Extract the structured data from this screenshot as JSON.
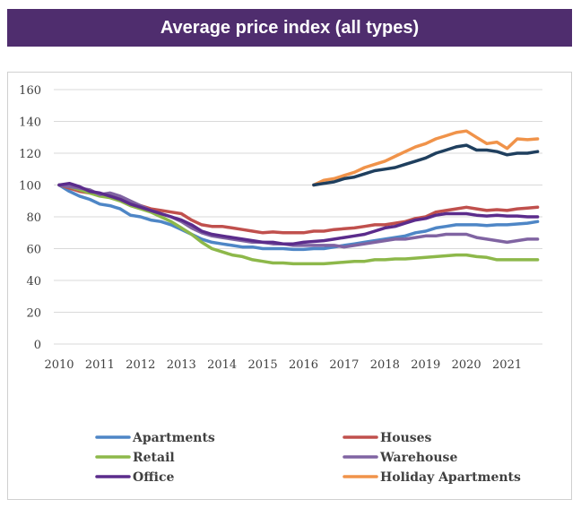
{
  "chart_data": {
    "type": "line",
    "title": "Average price index (all types)",
    "xlabel": "",
    "ylabel": "",
    "ylim": [
      0,
      160
    ],
    "xlim": [
      2010,
      2022
    ],
    "x_ticks": [
      "2010",
      "2011",
      "2012",
      "2013",
      "2014",
      "2015",
      "2016",
      "2017",
      "2018",
      "2019",
      "2020",
      "2021"
    ],
    "y_ticks": [
      "0",
      "20",
      "40",
      "60",
      "80",
      "100",
      "120",
      "140",
      "160"
    ],
    "grid": "horizontal",
    "legend_position": "bottom",
    "series": [
      {
        "name": "Apartments",
        "color": "#4e86c6",
        "x": [
          2010,
          2010.25,
          2010.5,
          2010.75,
          2011,
          2011.25,
          2011.5,
          2011.75,
          2012,
          2012.25,
          2012.5,
          2012.75,
          2013,
          2013.25,
          2013.5,
          2013.75,
          2014,
          2014.25,
          2014.5,
          2014.75,
          2015,
          2015.25,
          2015.5,
          2015.75,
          2016,
          2016.25,
          2016.5,
          2016.75,
          2017,
          2017.25,
          2017.5,
          2017.75,
          2018,
          2018.25,
          2018.5,
          2018.75,
          2019,
          2019.25,
          2019.5,
          2019.75,
          2020,
          2020.25,
          2020.5,
          2020.75,
          2021,
          2021.25,
          2021.5,
          2021.75
        ],
        "values": [
          100,
          96,
          93,
          91,
          88,
          87,
          85,
          81,
          80,
          78,
          77,
          75,
          72,
          69,
          66,
          64,
          63,
          62,
          61,
          61,
          60,
          60,
          60,
          59.5,
          59.5,
          60,
          60,
          61,
          62,
          63,
          64,
          65,
          66,
          67,
          68,
          70,
          71,
          73,
          74,
          75,
          75,
          75,
          74.5,
          75,
          75,
          75.5,
          76,
          77
        ]
      },
      {
        "name": "Houses",
        "color": "#c0504d",
        "x": [
          2010,
          2010.25,
          2010.5,
          2010.75,
          2011,
          2011.25,
          2011.5,
          2011.75,
          2012,
          2012.25,
          2012.5,
          2012.75,
          2013,
          2013.25,
          2013.5,
          2013.75,
          2014,
          2014.25,
          2014.5,
          2014.75,
          2015,
          2015.25,
          2015.5,
          2015.75,
          2016,
          2016.25,
          2016.5,
          2016.75,
          2017,
          2017.25,
          2017.5,
          2017.75,
          2018,
          2018.25,
          2018.5,
          2018.75,
          2019,
          2019.25,
          2019.5,
          2019.75,
          2020,
          2020.25,
          2020.5,
          2020.75,
          2021,
          2021.25,
          2021.5,
          2021.75
        ],
        "values": [
          100,
          98,
          96,
          95,
          94,
          93,
          91,
          89,
          87,
          85,
          84,
          83,
          82,
          78,
          75,
          74,
          74,
          73,
          72,
          71,
          70,
          70.5,
          70,
          70,
          70,
          71,
          71,
          72,
          72.5,
          73,
          74,
          75,
          75,
          76,
          77,
          79,
          80,
          83,
          84,
          85,
          86,
          85,
          84,
          84.5,
          84,
          85,
          85.5,
          86
        ]
      },
      {
        "name": "Retail",
        "color": "#8db84a",
        "x": [
          2010,
          2010.25,
          2010.5,
          2010.75,
          2011,
          2011.25,
          2011.5,
          2011.75,
          2012,
          2012.25,
          2012.5,
          2012.75,
          2013,
          2013.25,
          2013.5,
          2013.75,
          2014,
          2014.25,
          2014.5,
          2014.75,
          2015,
          2015.25,
          2015.5,
          2015.75,
          2016,
          2016.25,
          2016.5,
          2016.75,
          2017,
          2017.25,
          2017.5,
          2017.75,
          2018,
          2018.25,
          2018.5,
          2018.75,
          2019,
          2019.25,
          2019.5,
          2019.75,
          2020,
          2020.25,
          2020.5,
          2020.75,
          2021,
          2021.25,
          2021.5,
          2021.75
        ],
        "values": [
          100,
          99,
          97,
          95,
          93,
          92,
          90,
          87,
          85,
          83,
          80,
          77,
          73,
          69,
          64,
          60,
          58,
          56,
          55,
          53,
          52,
          51,
          51,
          50.5,
          50.5,
          50.5,
          50.5,
          51,
          51.5,
          52,
          52,
          53,
          53,
          53.5,
          53.5,
          54,
          54.5,
          55,
          55.5,
          56,
          56,
          55,
          54.5,
          53,
          53,
          53,
          53,
          53
        ]
      },
      {
        "name": "Warehouse",
        "color": "#8064a2",
        "x": [
          2010,
          2010.25,
          2010.5,
          2010.75,
          2011,
          2011.25,
          2011.5,
          2011.75,
          2012,
          2012.25,
          2012.5,
          2012.75,
          2013,
          2013.25,
          2013.5,
          2013.75,
          2014,
          2014.25,
          2014.5,
          2014.75,
          2015,
          2015.25,
          2015.5,
          2015.75,
          2016,
          2016.25,
          2016.5,
          2016.75,
          2017,
          2017.25,
          2017.5,
          2017.75,
          2018,
          2018.25,
          2018.5,
          2018.75,
          2019,
          2019.25,
          2019.5,
          2019.75,
          2020,
          2020.25,
          2020.5,
          2020.75,
          2021,
          2021.25,
          2021.5,
          2021.75
        ],
        "values": [
          100,
          99,
          98,
          97,
          94,
          95,
          93,
          90,
          87,
          84,
          82,
          80,
          77,
          73,
          70,
          68,
          67,
          66,
          65,
          64,
          64,
          63,
          63,
          62,
          62,
          62,
          62,
          62,
          61,
          62,
          63,
          64,
          65,
          66,
          66,
          67,
          68,
          68,
          69,
          69,
          69,
          67,
          66,
          65,
          64,
          65,
          66,
          66
        ]
      },
      {
        "name": "Office",
        "color": "#5b2c8c",
        "x": [
          2010,
          2010.25,
          2010.5,
          2010.75,
          2011,
          2011.25,
          2011.5,
          2011.75,
          2012,
          2012.25,
          2012.5,
          2012.75,
          2013,
          2013.25,
          2013.5,
          2013.75,
          2014,
          2014.25,
          2014.5,
          2014.75,
          2015,
          2015.25,
          2015.5,
          2015.75,
          2016,
          2016.25,
          2016.5,
          2016.75,
          2017,
          2017.25,
          2017.5,
          2017.75,
          2018,
          2018.25,
          2018.5,
          2018.75,
          2019,
          2019.25,
          2019.5,
          2019.75,
          2020,
          2020.25,
          2020.5,
          2020.75,
          2021,
          2021.25,
          2021.5,
          2021.75
        ],
        "values": [
          100,
          101,
          99,
          96,
          95,
          93,
          91,
          88,
          86,
          84,
          82,
          80,
          78,
          75,
          71,
          69,
          68,
          67,
          66,
          65,
          64,
          64,
          63,
          63,
          64,
          64.5,
          65,
          66,
          67,
          68,
          69,
          71,
          73,
          74,
          76,
          78,
          79,
          81,
          82,
          82,
          82,
          81,
          80.5,
          81,
          80.5,
          80.5,
          80,
          80
        ]
      },
      {
        "name": "Holiday Apartments",
        "color": "#f0934a",
        "x": [
          2016.25,
          2016.5,
          2016.75,
          2017,
          2017.25,
          2017.5,
          2017.75,
          2018,
          2018.25,
          2018.5,
          2018.75,
          2019,
          2019.25,
          2019.5,
          2019.75,
          2020,
          2020.25,
          2020.5,
          2020.75,
          2021,
          2021.25,
          2021.5,
          2021.75
        ],
        "values": [
          100,
          103,
          104,
          106,
          108,
          111,
          113,
          115,
          118,
          121,
          124,
          126,
          129,
          131,
          133,
          134,
          130,
          126,
          127,
          123,
          129,
          128.5,
          129
        ]
      },
      {
        "name": "",
        "color": "#1f3f5e",
        "x": [
          2016.25,
          2016.5,
          2016.75,
          2017,
          2017.25,
          2017.5,
          2017.75,
          2018,
          2018.25,
          2018.5,
          2018.75,
          2019,
          2019.25,
          2019.5,
          2019.75,
          2020,
          2020.25,
          2020.5,
          2020.75,
          2021,
          2021.25,
          2021.5,
          2021.75
        ],
        "values": [
          100,
          101,
          102,
          104,
          105,
          107,
          109,
          110,
          111,
          113,
          115,
          117,
          120,
          122,
          124,
          125,
          122,
          122,
          121,
          119,
          120,
          120,
          121
        ]
      }
    ]
  }
}
